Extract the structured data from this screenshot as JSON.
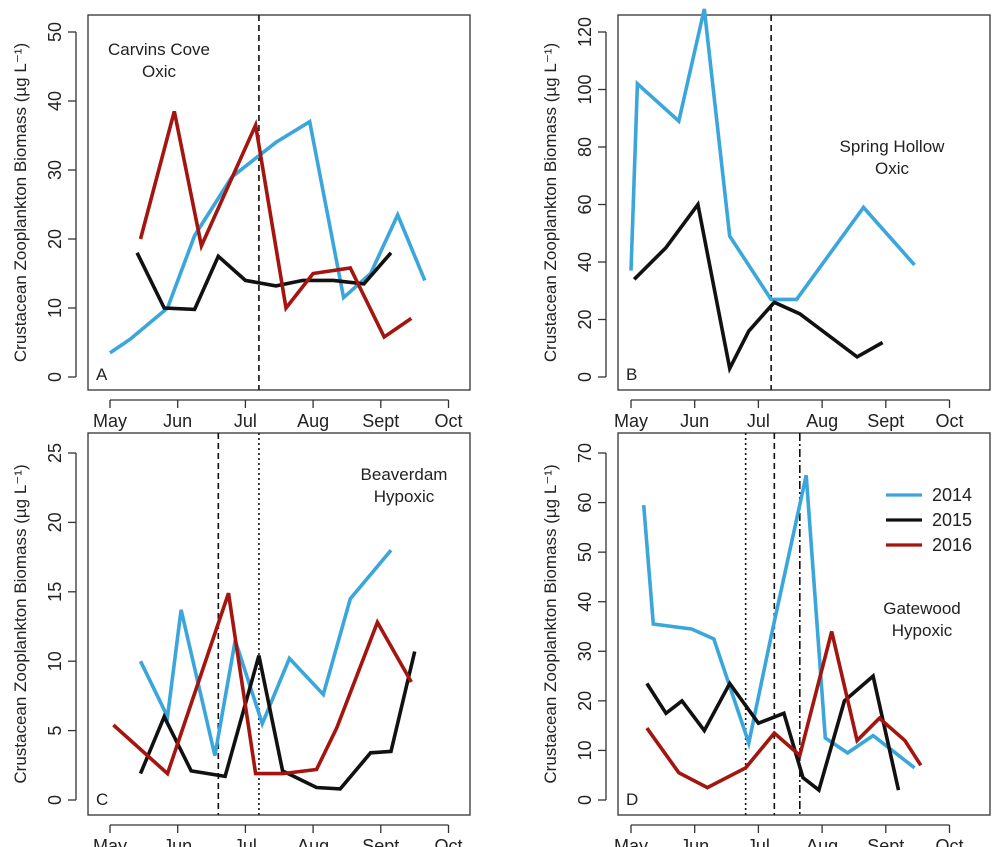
{
  "chart_data": [
    {
      "type": "line",
      "panel": "A",
      "annotation": [
        "Carvins Cove",
        "Oxic"
      ],
      "ylabel": "Crustacean Zooplankton Biomass (µg L⁻¹)",
      "xticks": [
        "May",
        "Jun",
        "Jul",
        "Aug",
        "Sept",
        "Oct"
      ],
      "yticks": [
        0,
        10,
        20,
        30,
        40,
        50
      ],
      "xlim": [
        0,
        5
      ],
      "ylim": [
        0,
        50
      ],
      "vlines": [
        {
          "x": 2.2,
          "style": "dashed"
        }
      ],
      "series": [
        {
          "name": "2014",
          "color": "#3aa6dc",
          "x": [
            0,
            0.3,
            0.85,
            1.25,
            1.8,
            2.45,
            2.95,
            3.45,
            3.85,
            4.25,
            4.65
          ],
          "y": [
            3.5,
            5.5,
            10,
            20.5,
            29,
            34,
            37,
            11.5,
            15,
            23.5,
            14
          ]
        },
        {
          "name": "2015",
          "color": "#111111",
          "x": [
            0.4,
            0.8,
            1.25,
            1.6,
            2.0,
            2.45,
            2.85,
            3.3,
            3.75,
            4.15
          ],
          "y": [
            18,
            10,
            9.8,
            17.5,
            14,
            13.2,
            14,
            14,
            13.5,
            18
          ]
        },
        {
          "name": "2016",
          "color": "#a3150e",
          "x": [
            0.45,
            0.95,
            1.35,
            2.15,
            2.6,
            3.0,
            3.55,
            4.05,
            4.45
          ],
          "y": [
            20,
            38.5,
            19,
            36.5,
            10,
            15,
            15.8,
            5.8,
            8.5
          ]
        }
      ]
    },
    {
      "type": "line",
      "panel": "B",
      "annotation": [
        "Spring Hollow",
        "Oxic"
      ],
      "ylabel": "Crustacean Zooplankton Biomass (µg L⁻¹)",
      "xticks": [
        "May",
        "Jun",
        "Jul",
        "Aug",
        "Sept",
        "Oct"
      ],
      "yticks": [
        0,
        20,
        40,
        60,
        80,
        100,
        120
      ],
      "xlim": [
        0,
        5
      ],
      "ylim": [
        0,
        128
      ],
      "vlines": [
        {
          "x": 2.2,
          "style": "dashed"
        }
      ],
      "series": [
        {
          "name": "2014",
          "color": "#3aa6dc",
          "x": [
            0,
            0.1,
            0.75,
            1.15,
            1.55,
            2.2,
            2.6,
            3.65,
            4.45
          ],
          "y": [
            37,
            102,
            89,
            128,
            49,
            27,
            27,
            59,
            39
          ]
        },
        {
          "name": "2015",
          "color": "#111111",
          "x": [
            0.05,
            0.55,
            1.05,
            1.55,
            1.85,
            2.25,
            2.65,
            3.55,
            3.95
          ],
          "y": [
            34,
            45,
            60,
            3,
            16,
            26,
            22,
            7,
            12
          ]
        }
      ]
    },
    {
      "type": "line",
      "panel": "C",
      "annotation": [
        "Beaverdam",
        "Hypoxic"
      ],
      "ylabel": "Crustacean Zooplankton Biomass (µg L⁻¹)",
      "xticks": [
        "May",
        "Jun",
        "Jul",
        "Aug",
        "Sept",
        "Oct"
      ],
      "yticks": [
        0,
        5,
        10,
        15,
        20,
        25
      ],
      "xlim": [
        0,
        5
      ],
      "ylim": [
        0,
        25
      ],
      "vlines": [
        {
          "x": 1.6,
          "style": "dashed"
        },
        {
          "x": 2.2,
          "style": "dotted"
        }
      ],
      "series": [
        {
          "name": "2014",
          "color": "#3aa6dc",
          "x": [
            0.45,
            0.85,
            1.05,
            1.55,
            1.85,
            2.25,
            2.65,
            3.15,
            3.55,
            4.15
          ],
          "y": [
            10,
            6,
            13.7,
            3.2,
            11.5,
            5.5,
            10.2,
            7.6,
            14.5,
            18
          ]
        },
        {
          "name": "2015",
          "color": "#111111",
          "x": [
            0.45,
            0.8,
            1.2,
            1.7,
            2.2,
            2.55,
            3.05,
            3.4,
            3.85,
            4.15,
            4.5
          ],
          "y": [
            1.9,
            6,
            2.1,
            1.7,
            10.4,
            2.1,
            0.9,
            0.8,
            3.4,
            3.5,
            10.7
          ]
        },
        {
          "name": "2016",
          "color": "#a3150e",
          "x": [
            0.05,
            0.85,
            1.75,
            2.15,
            2.55,
            3.05,
            3.35,
            3.95,
            4.45
          ],
          "y": [
            5.4,
            1.9,
            14.9,
            1.9,
            1.9,
            2.2,
            5.2,
            12.8,
            8.5
          ]
        }
      ]
    },
    {
      "type": "line",
      "panel": "D",
      "annotation": [
        "Gatewood",
        "Hypoxic"
      ],
      "ylabel": "Crustacean Zooplankton Biomass (µg L⁻¹)",
      "xticks": [
        "May",
        "Jun",
        "Jul",
        "Aug",
        "Sept",
        "Oct"
      ],
      "yticks": [
        0,
        10,
        20,
        30,
        40,
        50,
        60,
        70
      ],
      "xlim": [
        0,
        5
      ],
      "ylim": [
        0,
        70
      ],
      "vlines": [
        {
          "x": 1.8,
          "style": "dotted"
        },
        {
          "x": 2.25,
          "style": "dashed"
        },
        {
          "x": 2.65,
          "style": "dashdot"
        }
      ],
      "legend": {
        "position": "top-right",
        "entries": [
          "2014",
          "2015",
          "2016"
        ]
      },
      "series": [
        {
          "name": "2014",
          "color": "#3aa6dc",
          "x": [
            0.2,
            0.35,
            0.95,
            1.3,
            1.85,
            2.2,
            2.75,
            3.05,
            3.4,
            3.8,
            4.45
          ],
          "y": [
            59.5,
            35.5,
            34.5,
            32.5,
            11.5,
            33,
            65.5,
            12.5,
            9.5,
            13,
            6.5
          ]
        },
        {
          "name": "2015",
          "color": "#111111",
          "x": [
            0.25,
            0.55,
            0.8,
            1.15,
            1.55,
            2.0,
            2.4,
            2.7,
            2.95,
            3.35,
            3.8,
            4.2
          ],
          "y": [
            23.5,
            17.5,
            20,
            14,
            23.5,
            15.5,
            17.5,
            4.5,
            2,
            20,
            25,
            2
          ]
        },
        {
          "name": "2016",
          "color": "#a3150e",
          "x": [
            0.25,
            0.75,
            1.2,
            1.8,
            2.25,
            2.65,
            3.15,
            3.55,
            3.9,
            4.3,
            4.55
          ],
          "y": [
            14.5,
            5.5,
            2.5,
            6.5,
            13.5,
            9,
            34,
            12,
            16.5,
            12,
            7
          ]
        }
      ]
    }
  ]
}
